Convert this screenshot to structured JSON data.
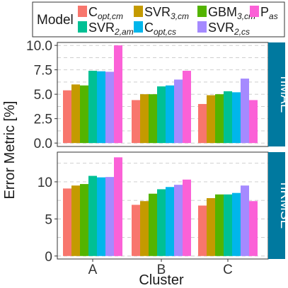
{
  "chart_data": {
    "type": "bar",
    "ylabel": "Error Metric [%]",
    "xlabel": "Cluster",
    "legend": {
      "title": "Model",
      "placement": "top"
    },
    "categories": [
      "A",
      "B",
      "C"
    ],
    "series": [
      {
        "name": "C_opt,cm",
        "base": "C",
        "sub": "opt,cm",
        "color": "#f8766d"
      },
      {
        "name": "SVR_3,cm",
        "base": "SVR",
        "sub": "3,cm",
        "color": "#c49a00"
      },
      {
        "name": "GBM_3,cm",
        "base": "GBM",
        "sub": "3,cm",
        "color": "#53b400"
      },
      {
        "name": "SVR_2,am",
        "base": "SVR",
        "sub": "2,am",
        "color": "#00c094"
      },
      {
        "name": "C_opt,cs",
        "base": "C",
        "sub": "opt,cs",
        "color": "#00b6eb"
      },
      {
        "name": "SVR_2,cs",
        "base": "SVR",
        "sub": "2,cs",
        "color": "#a58aff"
      },
      {
        "name": "P_as",
        "base": "P",
        "sub": "as",
        "color": "#fb61d7"
      }
    ],
    "facets": [
      {
        "strip": "nMAE",
        "ylim": [
          -0.35,
          10.3
        ],
        "yticks": [
          0.0,
          2.5,
          5.0,
          7.5,
          10.0
        ],
        "ytick_labels": [
          "0.0",
          "2.5",
          "5.0",
          "7.5",
          "10.0"
        ],
        "values": [
          [
            5.4,
            6.0,
            5.9,
            7.4,
            7.35,
            7.3,
            10.0
          ],
          [
            4.4,
            5.0,
            5.0,
            5.8,
            5.9,
            6.5,
            7.4
          ],
          [
            4.0,
            4.9,
            5.0,
            5.3,
            5.2,
            6.6,
            4.4
          ]
        ]
      },
      {
        "strip": "nRMSE",
        "ylim": [
          -0.4,
          14.0
        ],
        "yticks": [
          0,
          5,
          10
        ],
        "ytick_labels": [
          "0",
          "5",
          "10"
        ],
        "values": [
          [
            9.1,
            9.5,
            9.7,
            10.8,
            10.6,
            10.65,
            13.3
          ],
          [
            6.9,
            7.4,
            8.4,
            9.0,
            9.3,
            9.6,
            10.3
          ],
          [
            6.8,
            7.8,
            8.3,
            8.3,
            8.5,
            9.5,
            7.4
          ]
        ]
      }
    ]
  }
}
